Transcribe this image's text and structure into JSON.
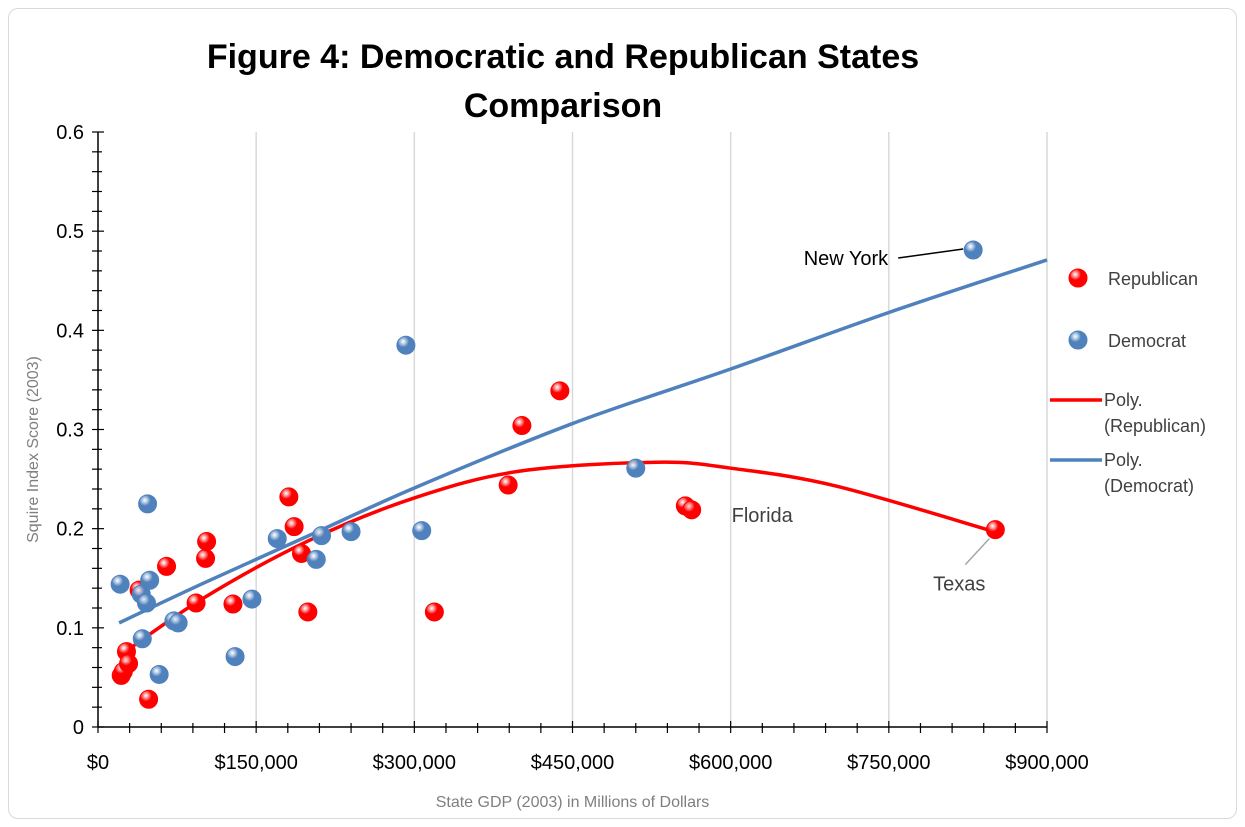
{
  "chart_data": {
    "type": "scatter",
    "title_lines": [
      "Figure 4: Democratic and Republican States",
      "Comparison"
    ],
    "xlabel": "State GDP (2003) in Millions of Dollars",
    "ylabel": "Squire Index Score (2003)",
    "xlim": [
      0,
      900000
    ],
    "ylim": [
      0,
      0.6
    ],
    "x_ticks": [
      0,
      150000,
      300000,
      450000,
      600000,
      750000,
      900000
    ],
    "x_tick_labels": [
      "$0",
      "$150,000",
      "$300,000",
      "$450,000",
      "$600,000",
      "$750,000",
      "$900,000"
    ],
    "y_ticks": [
      0,
      0.1,
      0.2,
      0.3,
      0.4,
      0.5,
      0.6
    ],
    "y_tick_labels": [
      "0",
      "0.1",
      "0.2",
      "0.3",
      "0.4",
      "0.5",
      "0.6"
    ],
    "grid": "vertical",
    "legend_position": "right",
    "series": [
      {
        "name": "Republican",
        "color": "#ff0000",
        "points": [
          [
            22000,
            0.052
          ],
          [
            24000,
            0.056
          ],
          [
            27000,
            0.076
          ],
          [
            29000,
            0.064
          ],
          [
            39000,
            0.138
          ],
          [
            48000,
            0.028
          ],
          [
            65000,
            0.162
          ],
          [
            93000,
            0.125
          ],
          [
            102000,
            0.17
          ],
          [
            103000,
            0.187
          ],
          [
            128000,
            0.124
          ],
          [
            181000,
            0.232
          ],
          [
            186000,
            0.202
          ],
          [
            193000,
            0.175
          ],
          [
            199000,
            0.116
          ],
          [
            319000,
            0.116
          ],
          [
            389000,
            0.244
          ],
          [
            402000,
            0.304
          ],
          [
            438000,
            0.339
          ],
          [
            557000,
            0.223
          ],
          [
            563000,
            0.219
          ],
          [
            851000,
            0.199
          ]
        ]
      },
      {
        "name": "Democrat",
        "color": "#4f81bd",
        "points": [
          [
            21000,
            0.144
          ],
          [
            41000,
            0.134
          ],
          [
            42000,
            0.089
          ],
          [
            46000,
            0.125
          ],
          [
            47000,
            0.225
          ],
          [
            49000,
            0.148
          ],
          [
            58000,
            0.053
          ],
          [
            72000,
            0.107
          ],
          [
            76000,
            0.105
          ],
          [
            130000,
            0.071
          ],
          [
            146000,
            0.129
          ],
          [
            170000,
            0.19
          ],
          [
            207000,
            0.169
          ],
          [
            212000,
            0.193
          ],
          [
            240000,
            0.197
          ],
          [
            292000,
            0.385
          ],
          [
            307000,
            0.198
          ],
          [
            510000,
            0.261
          ],
          [
            830000,
            0.481
          ]
        ]
      }
    ],
    "trendlines": [
      {
        "name": "Poly. (Republican)",
        "legend_lines": [
          "Poly.",
          "(Republican)"
        ],
        "color": "#ff0000",
        "points": [
          [
            22000,
            0.073
          ],
          [
            100000,
            0.13
          ],
          [
            200000,
            0.188
          ],
          [
            300000,
            0.231
          ],
          [
            400000,
            0.258
          ],
          [
            530000,
            0.267
          ],
          [
            600000,
            0.261
          ],
          [
            700000,
            0.243
          ],
          [
            850000,
            0.197
          ]
        ]
      },
      {
        "name": "Poly. (Democrat)",
        "legend_lines": [
          "Poly.",
          "(Democrat)"
        ],
        "color": "#4f81bd",
        "points": [
          [
            20000,
            0.105
          ],
          [
            100000,
            0.145
          ],
          [
            200000,
            0.193
          ],
          [
            300000,
            0.241
          ],
          [
            450000,
            0.306
          ],
          [
            600000,
            0.361
          ],
          [
            750000,
            0.418
          ],
          [
            900000,
            0.471
          ]
        ]
      }
    ],
    "annotations": [
      {
        "text": "New York",
        "x": 830000,
        "y": 0.481,
        "color": "#000000",
        "leader_color": "#000000",
        "anchor": "left"
      },
      {
        "text": "Florida",
        "x": 563000,
        "y": 0.219,
        "color": "#404040",
        "leader_color": null,
        "anchor": "right"
      },
      {
        "text": "Texas",
        "x": 851000,
        "y": 0.199,
        "color": "#404040",
        "leader_color": "#a6a6a6",
        "anchor": "below-left"
      }
    ]
  }
}
